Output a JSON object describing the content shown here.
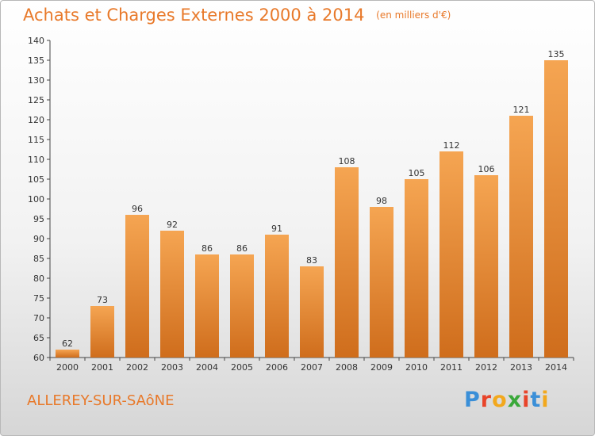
{
  "title": "Achats et Charges Externes 2000 à 2014",
  "unit": "(en milliers d'€)",
  "place": "ALLEREY-SUR-SAôNE",
  "logo": {
    "letters": [
      "P",
      "r",
      "o",
      "x",
      "i",
      "t",
      "i"
    ],
    "colors": [
      "#3a8fd8",
      "#e8442a",
      "#f2a81d",
      "#3aa83a",
      "#e8442a",
      "#3a8fd8",
      "#f2a81d"
    ]
  },
  "colors": {
    "bar": "#f09a45",
    "bar_dark": "#d8721f",
    "accent": "#e8792a"
  },
  "chart_data": {
    "type": "bar",
    "categories": [
      "2000",
      "2001",
      "2002",
      "2003",
      "2004",
      "2005",
      "2006",
      "2007",
      "2008",
      "2009",
      "2010",
      "2011",
      "2012",
      "2013",
      "2014"
    ],
    "values": [
      62,
      73,
      96,
      92,
      86,
      86,
      91,
      83,
      108,
      98,
      105,
      112,
      106,
      121,
      135
    ],
    "ylim": [
      60,
      140
    ],
    "yticks": [
      60,
      65,
      70,
      75,
      80,
      85,
      90,
      95,
      100,
      105,
      110,
      115,
      120,
      125,
      130,
      135,
      140
    ],
    "grid": false,
    "legend": "none"
  }
}
